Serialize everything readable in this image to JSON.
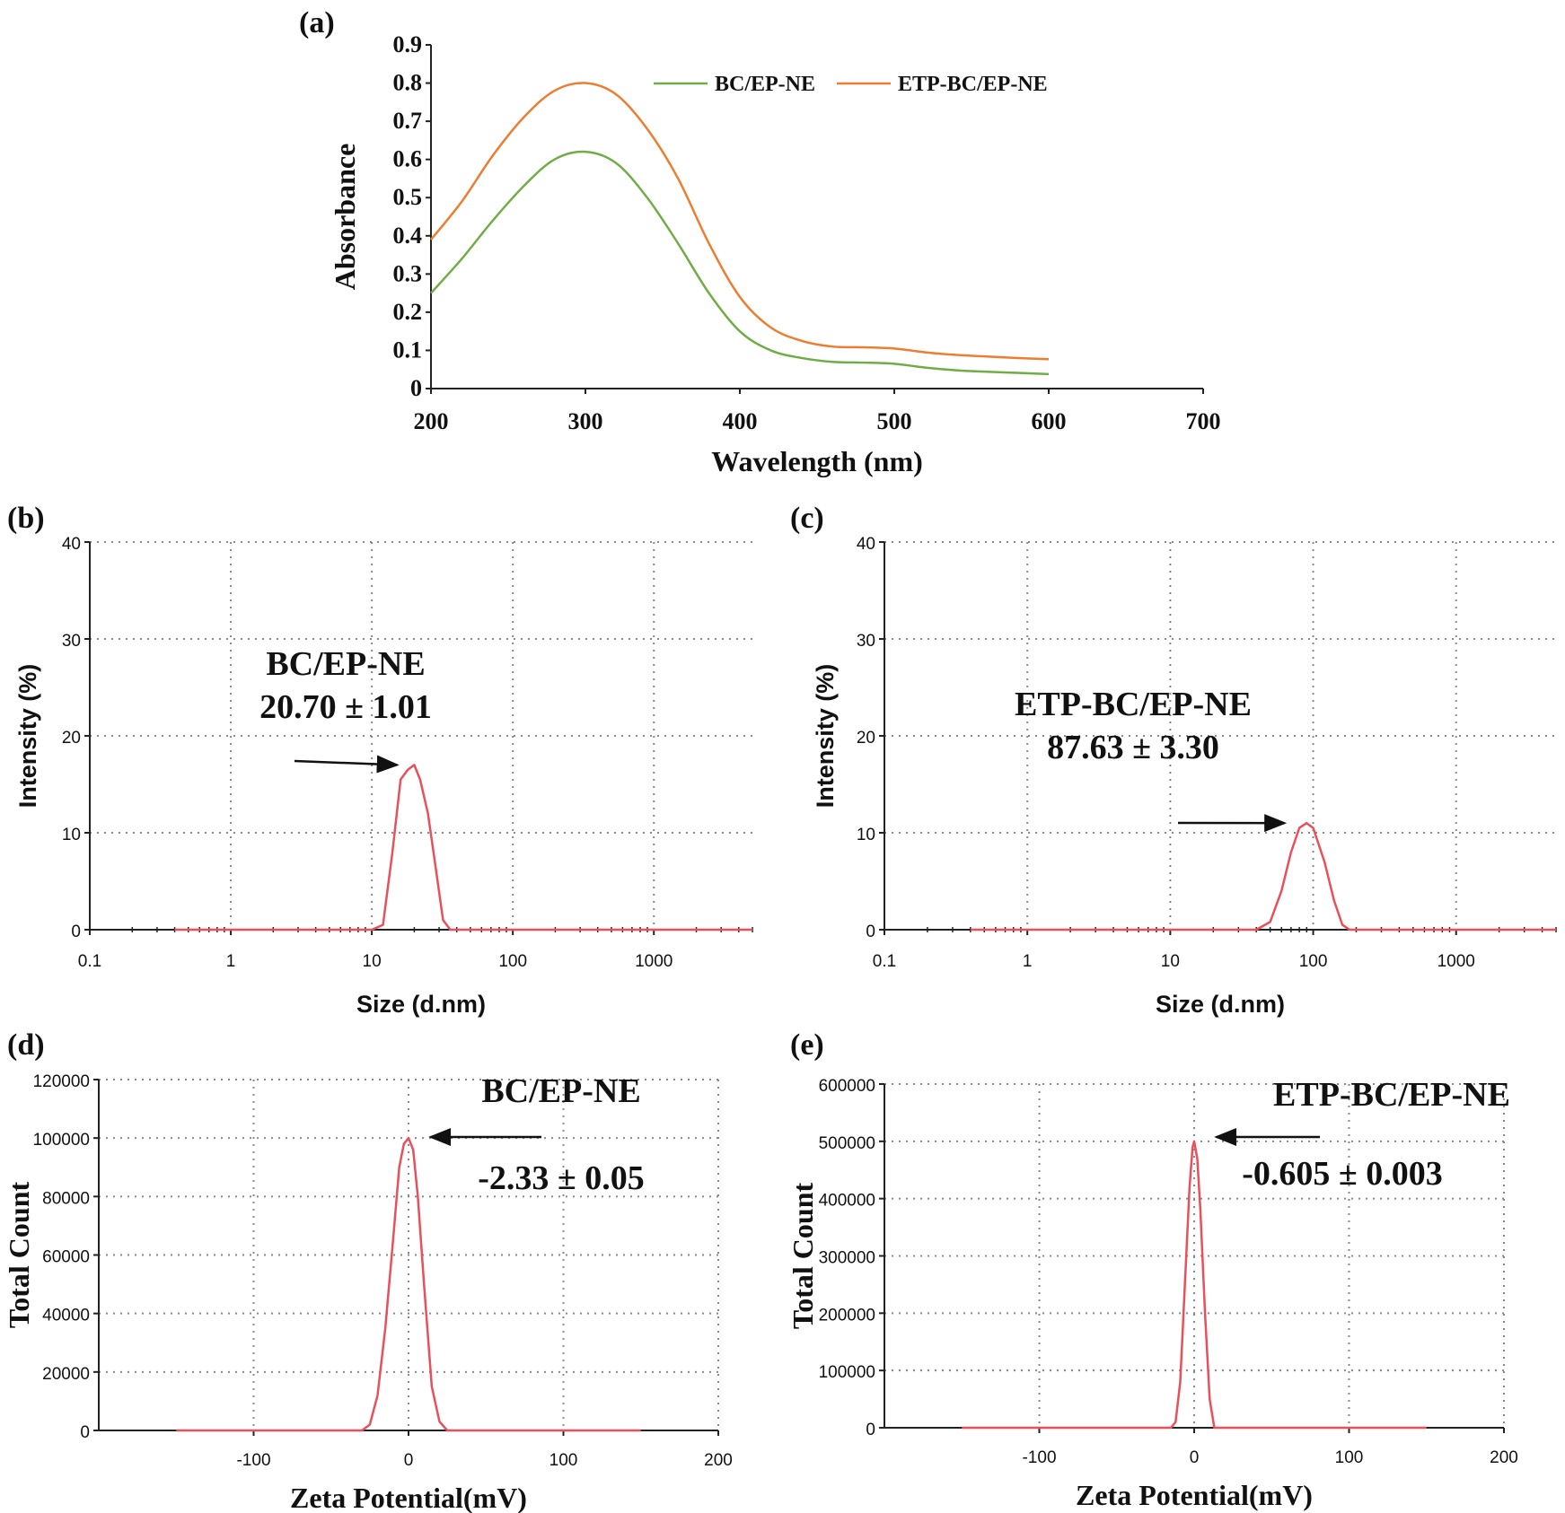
{
  "chart_data": [
    {
      "panel": "(a)",
      "type": "line",
      "xlabel": "Wavelength (nm)",
      "ylabel": "Absorbance",
      "xlim": [
        200,
        700
      ],
      "ylim": [
        0,
        0.9
      ],
      "xticks": [
        "200",
        "300",
        "400",
        "500",
        "600",
        "700"
      ],
      "yticks": [
        "0",
        "0.1",
        "0.2",
        "0.3",
        "0.4",
        "0.5",
        "0.6",
        "0.7",
        "0.8",
        "0.9"
      ],
      "grid": false,
      "legend_position": "top-right",
      "series": [
        {
          "name": "BC/EP-NE",
          "color": "#70ad47",
          "x": [
            200,
            220,
            240,
            260,
            280,
            300,
            320,
            340,
            360,
            380,
            400,
            420,
            440,
            460,
            480,
            500,
            520,
            540,
            560,
            580,
            600
          ],
          "y": [
            0.25,
            0.34,
            0.44,
            0.53,
            0.6,
            0.62,
            0.59,
            0.5,
            0.38,
            0.25,
            0.15,
            0.1,
            0.08,
            0.07,
            0.068,
            0.065,
            0.055,
            0.048,
            0.044,
            0.041,
            0.038
          ]
        },
        {
          "name": "ETP-BC/EP-NE",
          "color": "#ed7d31",
          "x": [
            200,
            220,
            240,
            260,
            280,
            300,
            320,
            340,
            360,
            380,
            400,
            420,
            440,
            460,
            480,
            500,
            520,
            540,
            560,
            580,
            600
          ],
          "y": [
            0.39,
            0.49,
            0.61,
            0.71,
            0.78,
            0.8,
            0.77,
            0.68,
            0.55,
            0.38,
            0.24,
            0.16,
            0.125,
            0.11,
            0.108,
            0.105,
            0.095,
            0.088,
            0.084,
            0.08,
            0.077
          ]
        }
      ]
    },
    {
      "panel": "(b)",
      "type": "line",
      "xscale": "log",
      "xlabel": "Size (d.nm)",
      "ylabel": "Intensity (%)",
      "xlim": [
        0.1,
        5000
      ],
      "ylim": [
        0,
        40
      ],
      "xticks": [
        "0.1",
        "1",
        "10",
        "100",
        "1000"
      ],
      "yticks": [
        "0",
        "10",
        "20",
        "30",
        "40"
      ],
      "grid": true,
      "annotation": {
        "lines": [
          "BC/EP-NE",
          "20.70 ± 1.01"
        ],
        "arrow_to": [
          18,
          17
        ]
      },
      "series": [
        {
          "color": "#e8505b",
          "x": [
            0.4,
            1,
            5,
            10,
            12,
            14,
            16,
            18,
            20,
            22,
            25,
            28,
            32,
            36,
            40,
            100,
            1000,
            5000
          ],
          "y": [
            0,
            0,
            0,
            0,
            0.5,
            8,
            15.5,
            16.5,
            17,
            15.5,
            12,
            7,
            1,
            0,
            0,
            0,
            0,
            0
          ]
        }
      ]
    },
    {
      "panel": "(c)",
      "type": "line",
      "xscale": "log",
      "xlabel": "Size (d.nm)",
      "ylabel": "Intensity (%)",
      "xlim": [
        0.1,
        5000
      ],
      "ylim": [
        0,
        40
      ],
      "xticks": [
        "0.1",
        "1",
        "10",
        "100",
        "1000"
      ],
      "yticks": [
        "0",
        "10",
        "20",
        "30",
        "40"
      ],
      "grid": true,
      "annotation": {
        "lines": [
          "ETP-BC/EP-NE",
          "87.63 ± 3.30"
        ],
        "arrow_to": [
          75,
          11
        ]
      },
      "series": [
        {
          "color": "#e8505b",
          "x": [
            0.4,
            1,
            10,
            40,
            50,
            60,
            70,
            80,
            90,
            100,
            120,
            140,
            160,
            180,
            1000,
            5000
          ],
          "y": [
            0,
            0,
            0,
            0,
            0.8,
            4,
            8,
            10.5,
            11,
            10.5,
            7,
            3,
            0.5,
            0,
            0,
            0
          ]
        }
      ]
    },
    {
      "panel": "(d)",
      "type": "line",
      "xlabel": "Zeta Potential(mV)",
      "ylabel": "Total Count",
      "xlim": [
        -200,
        200
      ],
      "ylim": [
        0,
        120000
      ],
      "xticks": [
        "-100",
        "0",
        "100",
        "200"
      ],
      "yticks": [
        "0",
        "20000",
        "40000",
        "60000",
        "80000",
        "100000",
        "120000"
      ],
      "grid": true,
      "annotation": {
        "lines": [
          "BC/EP-NE",
          "-2.33 ± 0.05"
        ],
        "arrow_to": [
          5,
          100000
        ]
      },
      "series": [
        {
          "color": "#e8505b",
          "x": [
            -150,
            -30,
            -25,
            -20,
            -15,
            -10,
            -6,
            -3,
            0,
            3,
            6,
            10,
            15,
            20,
            25,
            150
          ],
          "y": [
            0,
            0,
            2000,
            12000,
            35000,
            65000,
            90000,
            98000,
            100000,
            96000,
            80000,
            50000,
            15000,
            3000,
            0,
            0
          ]
        }
      ]
    },
    {
      "panel": "(e)",
      "type": "line",
      "xlabel": "Zeta Potential(mV)",
      "ylabel": "Total Count",
      "xlim": [
        -200,
        200
      ],
      "ylim": [
        0,
        600000
      ],
      "xticks": [
        "-100",
        "0",
        "100",
        "200"
      ],
      "yticks": [
        "0",
        "100000",
        "200000",
        "300000",
        "400000",
        "500000",
        "600000"
      ],
      "grid": true,
      "annotation": {
        "lines": [
          "ETP-BC/EP-NE",
          "-0.605 ± 0.003"
        ],
        "arrow_to": [
          5,
          500000
        ]
      },
      "series": [
        {
          "color": "#e8505b",
          "x": [
            -150,
            -15,
            -12,
            -9,
            -6,
            -3,
            -1,
            0,
            2,
            4,
            7,
            10,
            13,
            150
          ],
          "y": [
            0,
            0,
            10000,
            80000,
            250000,
            420000,
            490000,
            500000,
            470000,
            380000,
            200000,
            50000,
            0,
            0
          ]
        }
      ]
    }
  ]
}
